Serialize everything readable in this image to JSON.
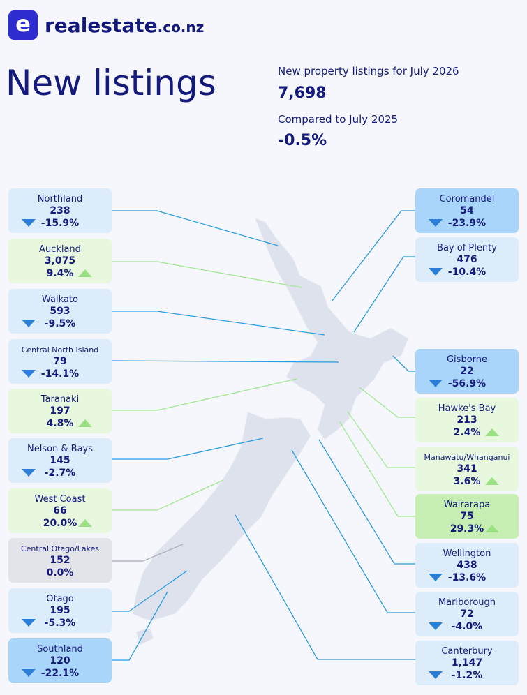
{
  "header": {
    "brand": "realestate",
    "domain": ".co.nz",
    "title": "New listings",
    "summary_label": "New property listings for July 2026",
    "summary_value": "7,698",
    "compare_label": "Compared to July 2025",
    "compare_value": "-0.5%"
  },
  "regions": [
    {
      "name": "Northland",
      "count": "238",
      "change": "-15.9%"
    },
    {
      "name": "Auckland",
      "count": "3,075",
      "change": "9.4%"
    },
    {
      "name": "Waikato",
      "count": "593",
      "change": "-9.5%"
    },
    {
      "name": "Central North Island",
      "count": "79",
      "change": "-14.1%"
    },
    {
      "name": "Taranaki",
      "count": "197",
      "change": "4.8%"
    },
    {
      "name": "Nelson & Bays",
      "count": "145",
      "change": "-2.7%"
    },
    {
      "name": "West Coast",
      "count": "66",
      "change": "20.0%"
    },
    {
      "name": "Central Otago/Lakes",
      "count": "152",
      "change": "0.0%"
    },
    {
      "name": "Otago",
      "count": "195",
      "change": "-5.3%"
    },
    {
      "name": "Southland",
      "count": "120",
      "change": "-22.1%"
    },
    {
      "name": "Coromandel",
      "count": "54",
      "change": "-23.9%"
    },
    {
      "name": "Bay of Plenty",
      "count": "476",
      "change": "-10.4%"
    },
    {
      "name": "Gisborne",
      "count": "22",
      "change": "-56.9%"
    },
    {
      "name": "Hawke's Bay",
      "count": "213",
      "change": "2.4%"
    },
    {
      "name": "Manawatu/Whanganui",
      "count": "341",
      "change": "3.6%"
    },
    {
      "name": "Wairarapa",
      "count": "75",
      "change": "29.3%"
    },
    {
      "name": "Wellington",
      "count": "438",
      "change": "-13.6%"
    },
    {
      "name": "Marlborough",
      "count": "72",
      "change": "-4.0%"
    },
    {
      "name": "Canterbury",
      "count": "1,147",
      "change": "-1.2%"
    }
  ]
}
